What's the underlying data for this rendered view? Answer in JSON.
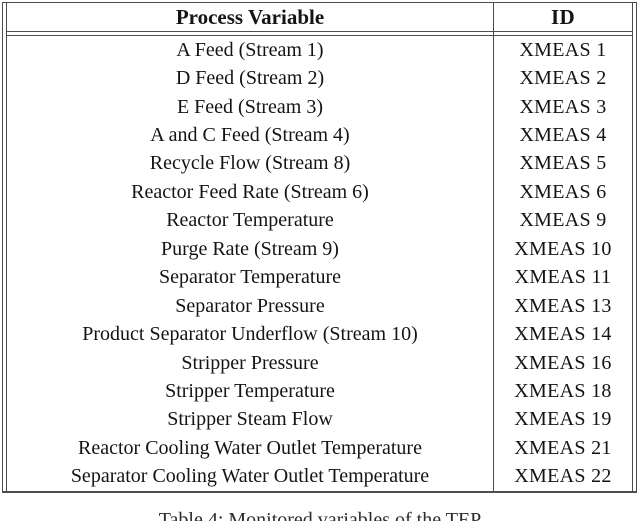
{
  "table": {
    "caption": "Table 4: Monitored variables of the TEP",
    "columns": [
      "Process Variable",
      "ID"
    ],
    "rows": [
      {
        "variable": "A Feed (Stream 1)",
        "id": "XMEAS 1"
      },
      {
        "variable": "D Feed (Stream 2)",
        "id": "XMEAS 2"
      },
      {
        "variable": "E Feed (Stream 3)",
        "id": "XMEAS 3"
      },
      {
        "variable": "A and C Feed (Stream 4)",
        "id": "XMEAS 4"
      },
      {
        "variable": "Recycle Flow (Stream 8)",
        "id": "XMEAS 5"
      },
      {
        "variable": "Reactor Feed Rate (Stream 6)",
        "id": "XMEAS 6"
      },
      {
        "variable": "Reactor Temperature",
        "id": "XMEAS 9"
      },
      {
        "variable": "Purge Rate (Stream 9)",
        "id": "XMEAS 10"
      },
      {
        "variable": "Separator Temperature",
        "id": "XMEAS 11"
      },
      {
        "variable": "Separator Pressure",
        "id": "XMEAS 13"
      },
      {
        "variable": "Product Separator Underflow (Stream 10)",
        "id": "XMEAS 14"
      },
      {
        "variable": "Stripper Pressure",
        "id": "XMEAS 16"
      },
      {
        "variable": "Stripper Temperature",
        "id": "XMEAS 18"
      },
      {
        "variable": "Stripper Steam Flow",
        "id": "XMEAS 19"
      },
      {
        "variable": "Reactor Cooling Water Outlet Temperature",
        "id": "XMEAS 21"
      },
      {
        "variable": "Separator Cooling Water Outlet Temperature",
        "id": "XMEAS 22"
      }
    ]
  },
  "colors": {
    "background": "#ffffff",
    "border": "#4d4d4d",
    "text": "#141414"
  }
}
